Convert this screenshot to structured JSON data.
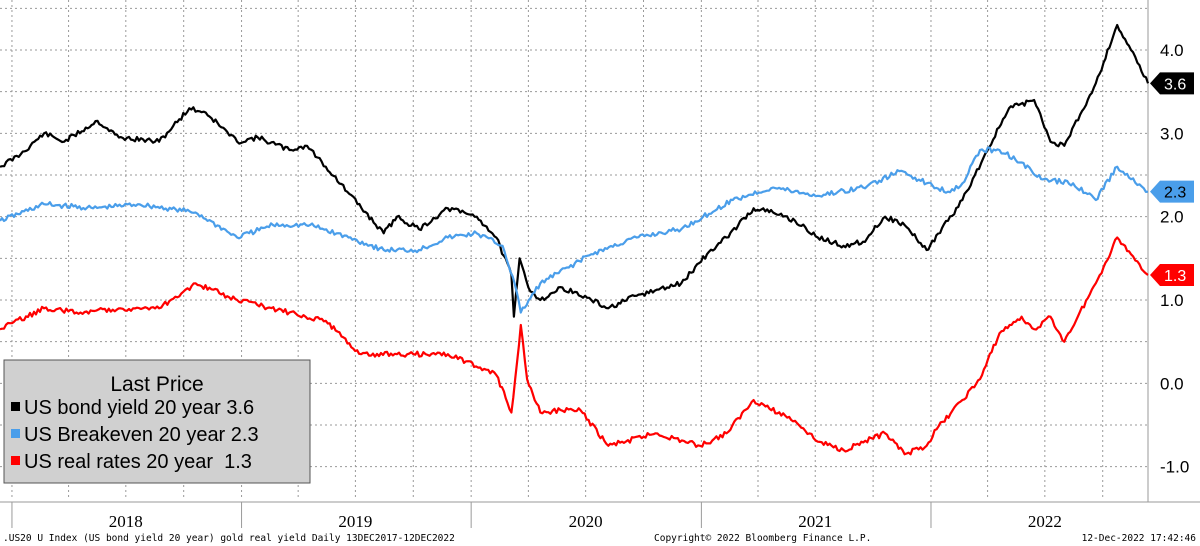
{
  "chart_data": {
    "type": "line",
    "x_axis": {
      "range": [
        "2017-12-13",
        "2022-12-12"
      ],
      "tick_labels": [
        "2018",
        "2019",
        "2020",
        "2021",
        "2022"
      ]
    },
    "y_axis": {
      "range": [
        -1.4,
        4.6
      ],
      "ticks": [
        -1.0,
        0.0,
        1.0,
        2.0,
        3.0,
        4.0
      ],
      "tick_labels": [
        "-1.0",
        "0.0",
        "1.0",
        "2.0",
        "3.0",
        "4.0"
      ],
      "side": "right"
    },
    "grid": true,
    "legend": {
      "title": "Last Price",
      "placement": "bottom-left",
      "entries": [
        "US bond yield 20 year 3.6",
        "US Breakeven 20 year 2.3",
        "US real rates 20 year  1.3"
      ]
    },
    "series": [
      {
        "name": "US bond yield 20 year",
        "color": "#000000",
        "last_label": "3.6",
        "points": [
          [
            "2017-12-13",
            2.6
          ],
          [
            "2018-01-15",
            2.75
          ],
          [
            "2018-02-21",
            3.0
          ],
          [
            "2018-03-25",
            2.9
          ],
          [
            "2018-05-17",
            3.15
          ],
          [
            "2018-06-20",
            2.95
          ],
          [
            "2018-08-23",
            2.9
          ],
          [
            "2018-10-10",
            3.3
          ],
          [
            "2018-11-05",
            3.25
          ],
          [
            "2018-12-25",
            2.9
          ],
          [
            "2019-01-27",
            2.95
          ],
          [
            "2019-03-18",
            2.8
          ],
          [
            "2019-04-15",
            2.85
          ],
          [
            "2019-05-15",
            2.6
          ],
          [
            "2019-06-18",
            2.3
          ],
          [
            "2019-08-15",
            1.8
          ],
          [
            "2019-09-05",
            2.0
          ],
          [
            "2019-10-10",
            1.85
          ],
          [
            "2019-11-25",
            2.1
          ],
          [
            "2020-01-10",
            2.0
          ],
          [
            "2020-02-10",
            1.75
          ],
          [
            "2020-03-05",
            1.3
          ],
          [
            "2020-03-09",
            0.8
          ],
          [
            "2020-03-18",
            1.5
          ],
          [
            "2020-04-01",
            1.15
          ],
          [
            "2020-04-20",
            1.0
          ],
          [
            "2020-05-25",
            1.15
          ],
          [
            "2020-07-10",
            1.0
          ],
          [
            "2020-08-06",
            0.9
          ],
          [
            "2020-09-20",
            1.05
          ],
          [
            "2020-11-30",
            1.2
          ],
          [
            "2021-01-10",
            1.55
          ],
          [
            "2021-02-10",
            1.75
          ],
          [
            "2021-03-25",
            2.1
          ],
          [
            "2021-04-25",
            2.05
          ],
          [
            "2021-05-30",
            1.95
          ],
          [
            "2021-07-05",
            1.75
          ],
          [
            "2021-08-15",
            1.65
          ],
          [
            "2021-09-15",
            1.7
          ],
          [
            "2021-10-20",
            2.0
          ],
          [
            "2021-11-20",
            1.9
          ],
          [
            "2021-12-25",
            1.6
          ],
          [
            "2022-01-28",
            1.95
          ],
          [
            "2022-02-20",
            2.2
          ],
          [
            "2022-03-25",
            2.7
          ],
          [
            "2022-05-05",
            3.3
          ],
          [
            "2022-06-14",
            3.4
          ],
          [
            "2022-07-10",
            2.9
          ],
          [
            "2022-08-01",
            2.85
          ],
          [
            "2022-09-20",
            3.6
          ],
          [
            "2022-10-24",
            4.3
          ],
          [
            "2022-11-15",
            4.0
          ],
          [
            "2022-12-12",
            3.6
          ]
        ]
      },
      {
        "name": "US Breakeven 20 year",
        "color": "#4a9eea",
        "last_label": "2.3",
        "points": [
          [
            "2017-12-13",
            1.95
          ],
          [
            "2018-02-21",
            2.15
          ],
          [
            "2018-05-10",
            2.1
          ],
          [
            "2018-07-20",
            2.15
          ],
          [
            "2018-10-20",
            2.05
          ],
          [
            "2018-12-25",
            1.75
          ],
          [
            "2019-02-20",
            1.9
          ],
          [
            "2019-04-20",
            1.9
          ],
          [
            "2019-06-20",
            1.75
          ],
          [
            "2019-08-15",
            1.6
          ],
          [
            "2019-10-10",
            1.6
          ],
          [
            "2019-11-25",
            1.75
          ],
          [
            "2020-01-10",
            1.8
          ],
          [
            "2020-02-20",
            1.65
          ],
          [
            "2020-03-10",
            1.2
          ],
          [
            "2020-03-20",
            0.85
          ],
          [
            "2020-04-20",
            1.2
          ],
          [
            "2020-07-10",
            1.55
          ],
          [
            "2020-09-20",
            1.75
          ],
          [
            "2020-11-30",
            1.85
          ],
          [
            "2021-02-20",
            2.2
          ],
          [
            "2021-04-25",
            2.35
          ],
          [
            "2021-07-05",
            2.25
          ],
          [
            "2021-09-15",
            2.35
          ],
          [
            "2021-11-15",
            2.55
          ],
          [
            "2021-12-25",
            2.4
          ],
          [
            "2022-01-28",
            2.3
          ],
          [
            "2022-02-20",
            2.4
          ],
          [
            "2022-03-20",
            2.8
          ],
          [
            "2022-04-20",
            2.8
          ],
          [
            "2022-05-25",
            2.65
          ],
          [
            "2022-06-25",
            2.45
          ],
          [
            "2022-08-15",
            2.4
          ],
          [
            "2022-09-20",
            2.2
          ],
          [
            "2022-10-24",
            2.6
          ],
          [
            "2022-11-15",
            2.45
          ],
          [
            "2022-12-12",
            2.3
          ]
        ]
      },
      {
        "name": "US real rates 20 year",
        "color": "#ff0000",
        "last_label": "1.3",
        "points": [
          [
            "2017-12-13",
            0.65
          ],
          [
            "2018-02-21",
            0.9
          ],
          [
            "2018-04-20",
            0.85
          ],
          [
            "2018-06-20",
            0.9
          ],
          [
            "2018-08-23",
            0.9
          ],
          [
            "2018-10-20",
            1.2
          ],
          [
            "2018-12-25",
            1.0
          ],
          [
            "2019-03-18",
            0.85
          ],
          [
            "2019-05-15",
            0.75
          ],
          [
            "2019-07-10",
            0.35
          ],
          [
            "2019-09-05",
            0.35
          ],
          [
            "2019-11-25",
            0.35
          ],
          [
            "2020-02-10",
            0.1
          ],
          [
            "2020-03-05",
            -0.35
          ],
          [
            "2020-03-20",
            0.7
          ],
          [
            "2020-03-30",
            0.05
          ],
          [
            "2020-04-20",
            -0.35
          ],
          [
            "2020-06-20",
            -0.3
          ],
          [
            "2020-08-06",
            -0.75
          ],
          [
            "2020-10-20",
            -0.6
          ],
          [
            "2020-12-30",
            -0.75
          ],
          [
            "2021-02-10",
            -0.6
          ],
          [
            "2021-03-25",
            -0.2
          ],
          [
            "2021-05-30",
            -0.45
          ],
          [
            "2021-07-05",
            -0.7
          ],
          [
            "2021-08-15",
            -0.8
          ],
          [
            "2021-10-20",
            -0.6
          ],
          [
            "2021-11-20",
            -0.85
          ],
          [
            "2021-12-25",
            -0.75
          ],
          [
            "2022-01-10",
            -0.55
          ],
          [
            "2022-02-20",
            -0.2
          ],
          [
            "2022-03-20",
            0.05
          ],
          [
            "2022-04-20",
            0.6
          ],
          [
            "2022-05-25",
            0.8
          ],
          [
            "2022-06-14",
            0.65
          ],
          [
            "2022-07-10",
            0.8
          ],
          [
            "2022-08-01",
            0.5
          ],
          [
            "2022-09-20",
            1.2
          ],
          [
            "2022-10-24",
            1.75
          ],
          [
            "2022-11-15",
            1.55
          ],
          [
            "2022-12-12",
            1.3
          ]
        ]
      }
    ],
    "footer": {
      "left": ".US20 U Index (US bond yield 20 year) gold real yield  Daily 13DEC2017-12DEC2022",
      "center": "Copyright© 2022 Bloomberg Finance L.P.",
      "right": "12-Dec-2022 17:42:46"
    }
  }
}
